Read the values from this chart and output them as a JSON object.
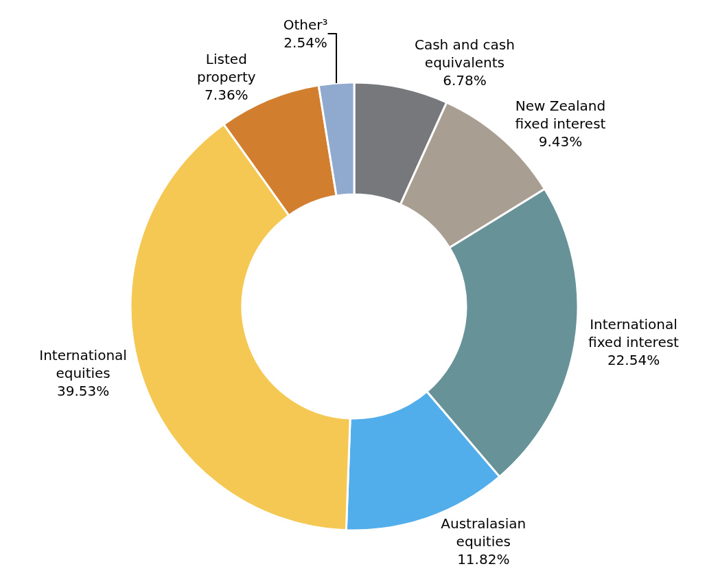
{
  "chart_data": {
    "type": "donut",
    "categories": [
      "Cash and cash\nequivalents",
      "New Zealand\nfixed interest",
      "International\nfixed interest",
      "Australasian\nequities",
      "International\nequities",
      "Listed\nproperty",
      "Other³"
    ],
    "values": [
      6.78,
      9.43,
      22.54,
      11.82,
      39.53,
      7.36,
      2.54
    ],
    "value_labels": [
      "6.78%",
      "9.43%",
      "22.54%",
      "11.82%",
      "39.53%",
      "7.36%",
      "2.54%"
    ],
    "colors": [
      "#77787b",
      "#a89e92",
      "#679297",
      "#52aeea",
      "#f4c852",
      "#d17f2f",
      "#8fa9cf"
    ]
  }
}
